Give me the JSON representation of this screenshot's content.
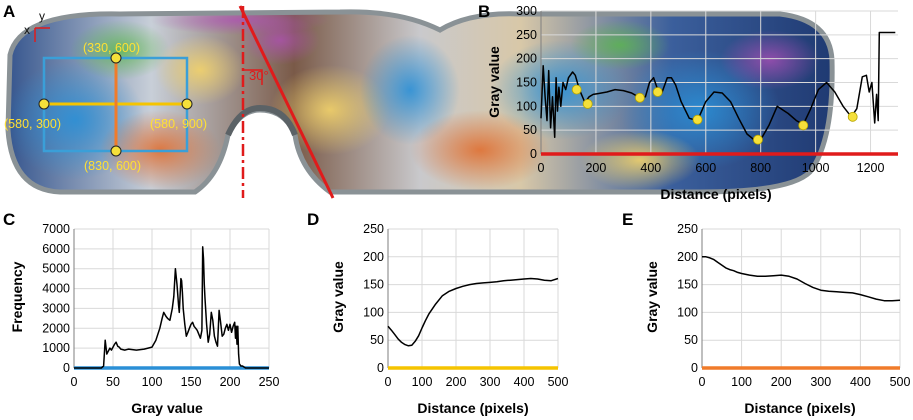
{
  "panel_labels": {
    "a": "A",
    "b": "B",
    "c": "C",
    "d": "D",
    "e": "E"
  },
  "photo": {
    "axis_x": "x",
    "axis_y": "y",
    "angle_label": "30°",
    "points": [
      {
        "label": "(330, 600)"
      },
      {
        "label": "(580, 300)"
      },
      {
        "label": "(580, 900)"
      },
      {
        "label": "(830, 600)"
      }
    ],
    "colors": {
      "line": "#e01b1b",
      "roi": "#3a9fd8",
      "h_line": "#f5c400",
      "v_line": "#f07b2a",
      "marker": "#f5e03a"
    }
  },
  "chart_data": [
    {
      "id": "B",
      "type": "line",
      "xlabel": "Distance (pixels)",
      "ylabel": "Gray value",
      "xlim": [
        0,
        1300
      ],
      "ylim": [
        0,
        300
      ],
      "xticks": [
        0,
        200,
        400,
        600,
        800,
        1000,
        1200
      ],
      "yticks": [
        0,
        50,
        100,
        150,
        200,
        250,
        300
      ],
      "axis_color": "#e01b1b",
      "series": [
        {
          "name": "profile",
          "x": [
            0,
            8,
            15,
            22,
            28,
            35,
            42,
            50,
            55,
            60,
            65,
            72,
            80,
            90,
            100,
            115,
            125,
            140,
            160,
            175,
            190,
            210,
            240,
            270,
            300,
            330,
            360,
            380,
            395,
            410,
            425,
            440,
            460,
            475,
            490,
            510,
            540,
            570,
            600,
            630,
            660,
            690,
            720,
            750,
            780,
            800,
            830,
            860,
            900,
            930,
            955,
            980,
            1010,
            1040,
            1070,
            1100,
            1130,
            1150,
            1170,
            1185,
            1195,
            1205,
            1215,
            1222,
            1228,
            1232,
            1240,
            1270,
            1290
          ],
          "y": [
            75,
            185,
            120,
            70,
            175,
            55,
            120,
            35,
            160,
            90,
            140,
            100,
            150,
            135,
            160,
            172,
            165,
            135,
            108,
            120,
            125,
            127,
            130,
            135,
            133,
            128,
            118,
            120,
            150,
            160,
            135,
            128,
            160,
            160,
            145,
            110,
            75,
            70,
            110,
            130,
            128,
            110,
            75,
            42,
            28,
            30,
            60,
            100,
            85,
            70,
            62,
            92,
            135,
            150,
            130,
            100,
            78,
            95,
            162,
            165,
            130,
            150,
            65,
            125,
            70,
            255,
            255,
            255,
            255
          ]
        }
      ],
      "markers": [
        {
          "x": 130,
          "y": 135
        },
        {
          "x": 170,
          "y": 105
        },
        {
          "x": 360,
          "y": 118
        },
        {
          "x": 425,
          "y": 130
        },
        {
          "x": 570,
          "y": 72
        },
        {
          "x": 790,
          "y": 30
        },
        {
          "x": 955,
          "y": 60
        },
        {
          "x": 1135,
          "y": 78
        }
      ]
    },
    {
      "id": "C",
      "type": "line",
      "xlabel": "Gray value",
      "ylabel": "Frequency",
      "xlim": [
        0,
        250
      ],
      "ylim": [
        0,
        7000
      ],
      "xticks": [
        0,
        50,
        100,
        150,
        200,
        250
      ],
      "yticks": [
        0,
        1000,
        2000,
        3000,
        4000,
        5000,
        6000,
        7000
      ],
      "axis_color": "#2a8fd6",
      "series": [
        {
          "name": "histogram",
          "x": [
            0,
            35,
            38,
            40,
            42,
            44,
            46,
            48,
            50,
            52,
            54,
            56,
            58,
            60,
            65,
            70,
            80,
            90,
            100,
            105,
            110,
            113,
            115,
            118,
            120,
            123,
            126,
            128,
            130,
            132,
            134,
            135,
            137,
            138,
            139,
            140,
            142,
            144,
            146,
            148,
            150,
            152,
            154,
            156,
            158,
            160,
            162,
            164,
            165,
            166,
            167,
            168,
            170,
            172,
            174,
            176,
            178,
            180,
            182,
            184,
            186,
            188,
            190,
            192,
            194,
            196,
            198,
            200,
            202,
            204,
            206,
            207,
            208,
            209,
            210,
            211,
            212,
            214,
            216,
            218,
            220,
            225,
            250
          ],
          "y": [
            0,
            0,
            100,
            1400,
            700,
            850,
            1000,
            900,
            1050,
            1200,
            1300,
            1100,
            1050,
            950,
            900,
            950,
            900,
            950,
            1050,
            1400,
            2000,
            2500,
            2800,
            2600,
            2500,
            2400,
            3000,
            3600,
            5000,
            4200,
            3200,
            2800,
            4500,
            4400,
            3800,
            3000,
            2200,
            1600,
            1800,
            2000,
            2200,
            2300,
            2100,
            2000,
            1900,
            1700,
            1500,
            1900,
            6100,
            5500,
            4200,
            3500,
            2200,
            1300,
            1700,
            2800,
            2400,
            1600,
            1300,
            1100,
            2900,
            2300,
            1600,
            1700,
            2000,
            2200,
            1900,
            2200,
            1800,
            2100,
            2300,
            1500,
            2100,
            1200,
            2100,
            700,
            200,
            100,
            100,
            50,
            0,
            0,
            0
          ]
        }
      ]
    },
    {
      "id": "D",
      "type": "line",
      "xlabel": "Distance (pixels)",
      "ylabel": "Gray value",
      "xlim": [
        0,
        500
      ],
      "ylim": [
        0,
        250
      ],
      "xticks": [
        0,
        100,
        200,
        300,
        400,
        500
      ],
      "yticks": [
        0,
        50,
        100,
        150,
        200,
        250
      ],
      "axis_color": "#f5c400",
      "series": [
        {
          "name": "profile",
          "x": [
            0,
            10,
            20,
            30,
            40,
            50,
            60,
            70,
            80,
            90,
            100,
            110,
            120,
            140,
            160,
            180,
            200,
            220,
            240,
            260,
            280,
            300,
            320,
            340,
            360,
            380,
            400,
            420,
            440,
            460,
            480,
            500
          ],
          "y": [
            75,
            68,
            60,
            52,
            46,
            42,
            40,
            41,
            48,
            58,
            72,
            85,
            97,
            115,
            130,
            138,
            143,
            147,
            150,
            152,
            153,
            154,
            155,
            157,
            158,
            159,
            160,
            161,
            160,
            158,
            157,
            161
          ]
        }
      ]
    },
    {
      "id": "E",
      "type": "line",
      "xlabel": "Distance (pixels)",
      "ylabel": "Gray value",
      "xlim": [
        0,
        500
      ],
      "ylim": [
        0,
        250
      ],
      "xticks": [
        0,
        100,
        200,
        300,
        400,
        500
      ],
      "yticks": [
        0,
        50,
        100,
        150,
        200,
        250
      ],
      "axis_color": "#f07b2a",
      "series": [
        {
          "name": "profile",
          "x": [
            0,
            10,
            20,
            30,
            40,
            50,
            60,
            70,
            80,
            90,
            100,
            120,
            140,
            160,
            180,
            200,
            220,
            240,
            260,
            280,
            300,
            320,
            340,
            360,
            380,
            400,
            420,
            440,
            460,
            480,
            500
          ],
          "y": [
            200,
            200,
            198,
            195,
            190,
            185,
            180,
            177,
            175,
            172,
            170,
            167,
            165,
            165,
            166,
            167,
            165,
            160,
            152,
            145,
            140,
            138,
            137,
            136,
            135,
            132,
            128,
            124,
            121,
            121,
            122
          ]
        }
      ]
    }
  ]
}
